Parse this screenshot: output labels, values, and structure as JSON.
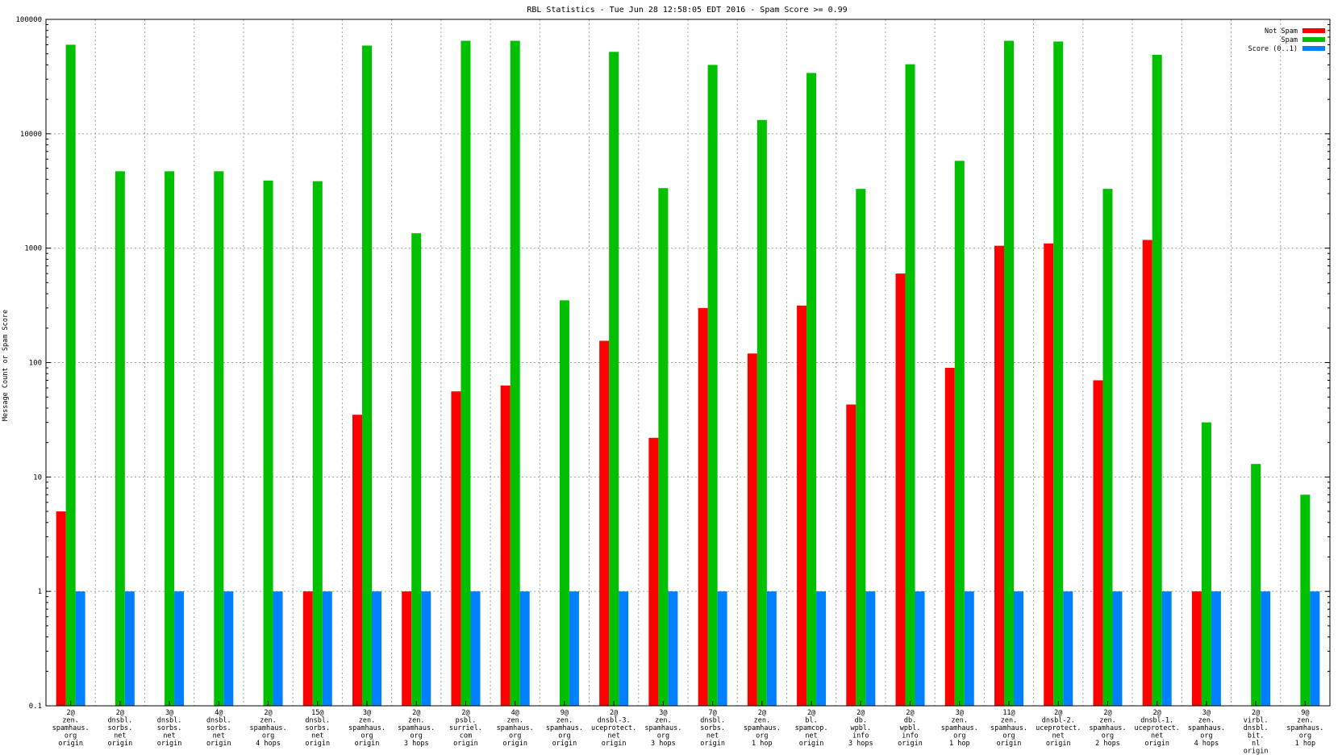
{
  "chart_data": {
    "type": "bar",
    "title": "RBL Statistics - Tue Jun 28 12:58:05 EDT 2016 - Spam Score >= 0.99",
    "ylabel": "Message Count or Spam Score",
    "xlabel": "",
    "yscale": "log",
    "ylim": [
      0.1,
      100000
    ],
    "yticks": [
      "0.1",
      "1",
      "10",
      "100",
      "1000",
      "10000",
      "100000"
    ],
    "grid": true,
    "legend_position": "top-right",
    "categories": [
      [
        "2@",
        "zen.",
        "spamhaus.",
        "org",
        "origin"
      ],
      [
        "2@",
        "dnsbl.",
        "sorbs.",
        "net",
        "origin"
      ],
      [
        "3@",
        "dnsbl.",
        "sorbs.",
        "net",
        "origin"
      ],
      [
        "4@",
        "dnsbl.",
        "sorbs.",
        "net",
        "origin"
      ],
      [
        "2@",
        "zen.",
        "spamhaus.",
        "org",
        "4 hops"
      ],
      [
        "15@",
        "dnsbl.",
        "sorbs.",
        "net",
        "origin"
      ],
      [
        "3@",
        "zen.",
        "spamhaus.",
        "org",
        "origin"
      ],
      [
        "2@",
        "zen.",
        "spamhaus.",
        "org",
        "3 hops"
      ],
      [
        "2@",
        "psbl.",
        "surriel.",
        "com",
        "origin"
      ],
      [
        "4@",
        "zen.",
        "spamhaus.",
        "org",
        "origin"
      ],
      [
        "9@",
        "zen.",
        "spamhaus.",
        "org",
        "origin"
      ],
      [
        "2@",
        "dnsbl-3.",
        "uceprotect.",
        "net",
        "origin"
      ],
      [
        "3@",
        "zen.",
        "spamhaus.",
        "org",
        "3 hops"
      ],
      [
        "7@",
        "dnsbl.",
        "sorbs.",
        "net",
        "origin"
      ],
      [
        "2@",
        "zen.",
        "spamhaus.",
        "org",
        "1 hop"
      ],
      [
        "2@",
        "bl.",
        "spamcop.",
        "net",
        "origin"
      ],
      [
        "2@",
        "db.",
        "wpbl.",
        "info",
        "3 hops"
      ],
      [
        "2@",
        "db.",
        "wpbl.",
        "info",
        "origin"
      ],
      [
        "3@",
        "zen.",
        "spamhaus.",
        "org",
        "1 hop"
      ],
      [
        "11@",
        "zen.",
        "spamhaus.",
        "org",
        "origin"
      ],
      [
        "2@",
        "dnsbl-2.",
        "uceprotect.",
        "net",
        "origin"
      ],
      [
        "2@",
        "zen.",
        "spamhaus.",
        "org",
        "2 hops"
      ],
      [
        "2@",
        "dnsbl-1.",
        "uceprotect.",
        "net",
        "origin"
      ],
      [
        "3@",
        "zen.",
        "spamhaus.",
        "org",
        "4 hops"
      ],
      [
        "2@",
        "virbl.",
        "dnsbl.",
        "bit.",
        "nl",
        "origin"
      ],
      [
        "9@",
        "zen.",
        "spamhaus.",
        "org",
        "1 hop"
      ]
    ],
    "series": [
      {
        "name": "Not Spam",
        "color": "#ff0000",
        "values": [
          5,
          null,
          null,
          null,
          null,
          1,
          35,
          1,
          56,
          63,
          null,
          155,
          22,
          300,
          120,
          315,
          43,
          600,
          90,
          1050,
          1100,
          70,
          1180,
          1,
          null,
          null
        ]
      },
      {
        "name": "Spam",
        "color": "#00c000",
        "values": [
          60000,
          4700,
          4700,
          4700,
          3900,
          3850,
          59000,
          1350,
          65000,
          65000,
          350,
          52000,
          3350,
          40000,
          13200,
          34000,
          3300,
          40500,
          5800,
          65000,
          64000,
          3300,
          49000,
          30,
          13,
          7
        ]
      },
      {
        "name": "Score (0..1)",
        "color": "#0080ff",
        "values": [
          1,
          1,
          1,
          1,
          1,
          1,
          1,
          1,
          1,
          1,
          1,
          1,
          1,
          1,
          1,
          1,
          1,
          1,
          1,
          1,
          1,
          1,
          1,
          1,
          1,
          1
        ]
      }
    ]
  }
}
